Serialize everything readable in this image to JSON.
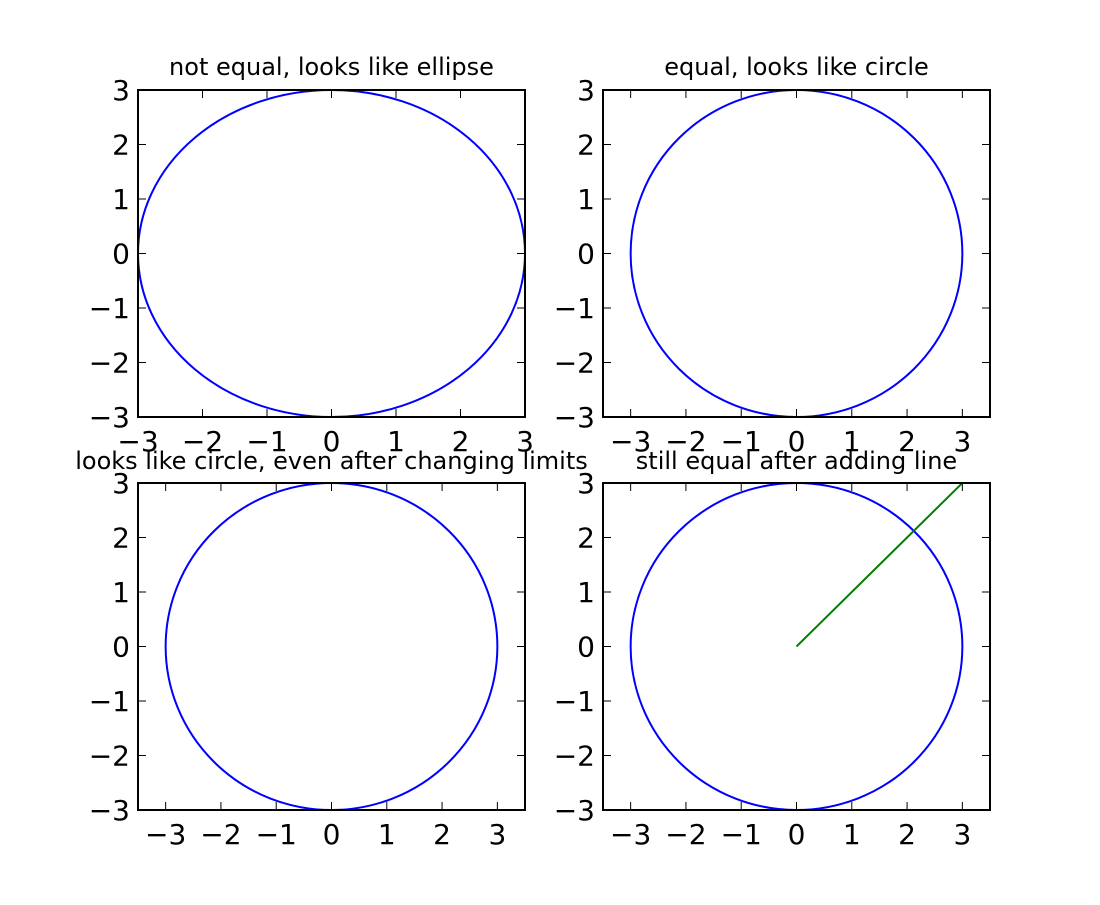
{
  "chart_data": [
    {
      "type": "line",
      "title": "not equal, looks like ellipse",
      "xlim": [
        -3,
        3
      ],
      "ylim": [
        -3,
        3
      ],
      "xticks": [
        -3,
        -2,
        -1,
        0,
        1,
        2,
        3
      ],
      "yticks": [
        -3,
        -2,
        -1,
        0,
        1,
        2,
        3
      ],
      "xtick_labels": [
        "−3",
        "−2",
        "−1",
        "0",
        "1",
        "2",
        "3"
      ],
      "ytick_labels": [
        "−3",
        "−2",
        "−1",
        "0",
        "1",
        "2",
        "3"
      ],
      "aspect": "auto",
      "grid": false,
      "series": [
        {
          "shape": "circle",
          "center": [
            0,
            0
          ],
          "radius": 3,
          "color": "#0000ff"
        }
      ]
    },
    {
      "type": "line",
      "title": "equal, looks like circle",
      "xlim": [
        -3.5,
        3.5
      ],
      "ylim": [
        -3,
        3
      ],
      "xticks": [
        -3,
        -2,
        -1,
        0,
        1,
        2,
        3
      ],
      "yticks": [
        -3,
        -2,
        -1,
        0,
        1,
        2,
        3
      ],
      "xtick_labels": [
        "−3",
        "−2",
        "−1",
        "0",
        "1",
        "2",
        "3"
      ],
      "ytick_labels": [
        "−3",
        "−2",
        "−1",
        "0",
        "1",
        "2",
        "3"
      ],
      "aspect": "equal",
      "grid": false,
      "series": [
        {
          "shape": "circle",
          "center": [
            0,
            0
          ],
          "radius": 3,
          "color": "#0000ff"
        }
      ]
    },
    {
      "type": "line",
      "title": "looks like circle, even after changing limits",
      "xlim": [
        -3.5,
        3.5
      ],
      "ylim": [
        -3,
        3
      ],
      "xticks": [
        -3,
        -2,
        -1,
        0,
        1,
        2,
        3
      ],
      "yticks": [
        -3,
        -2,
        -1,
        0,
        1,
        2,
        3
      ],
      "xtick_labels": [
        "−3",
        "−2",
        "−1",
        "0",
        "1",
        "2",
        "3"
      ],
      "ytick_labels": [
        "−3",
        "−2",
        "−1",
        "0",
        "1",
        "2",
        "3"
      ],
      "aspect": "equal",
      "grid": false,
      "series": [
        {
          "shape": "circle",
          "center": [
            0,
            0
          ],
          "radius": 3,
          "color": "#0000ff"
        }
      ]
    },
    {
      "type": "line",
      "title": "still equal after adding line",
      "xlim": [
        -3.5,
        3.5
      ],
      "ylim": [
        -3,
        3
      ],
      "xticks": [
        -3,
        -2,
        -1,
        0,
        1,
        2,
        3
      ],
      "yticks": [
        -3,
        -2,
        -1,
        0,
        1,
        2,
        3
      ],
      "xtick_labels": [
        "−3",
        "−2",
        "−1",
        "0",
        "1",
        "2",
        "3"
      ],
      "ytick_labels": [
        "−3",
        "−2",
        "−1",
        "0",
        "1",
        "2",
        "3"
      ],
      "aspect": "equal",
      "grid": false,
      "series": [
        {
          "shape": "circle",
          "center": [
            0,
            0
          ],
          "radius": 3,
          "color": "#0000ff"
        },
        {
          "shape": "line",
          "x": [
            0,
            3
          ],
          "y": [
            0,
            3
          ],
          "color": "#008000"
        }
      ]
    }
  ]
}
